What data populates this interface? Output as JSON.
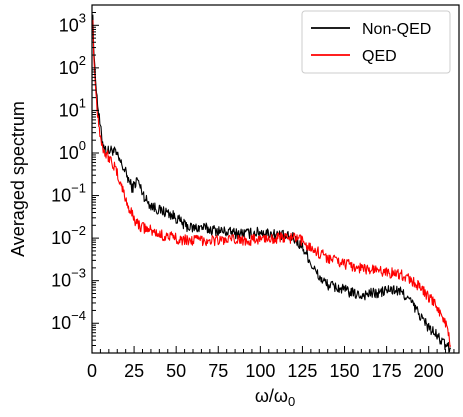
{
  "chart_data": {
    "type": "line",
    "xlabel": "ω/ω",
    "xlabel_sub": "0",
    "ylabel": "Averaged spectrum",
    "yscale": "log",
    "xlim": [
      0,
      218
    ],
    "ylim": [
      2e-05,
      3000
    ],
    "x_ticks": [
      0,
      25,
      50,
      75,
      100,
      125,
      150,
      175,
      200
    ],
    "y_ticks": [
      {
        "value": 1000,
        "base": "10",
        "exp": "3"
      },
      {
        "value": 100,
        "base": "10",
        "exp": "2"
      },
      {
        "value": 10,
        "base": "10",
        "exp": "1"
      },
      {
        "value": 1,
        "base": "10",
        "exp": "0"
      },
      {
        "value": 0.1,
        "base": "10",
        "exp": "−1"
      },
      {
        "value": 0.01,
        "base": "10",
        "exp": "−2"
      },
      {
        "value": 0.001,
        "base": "10",
        "exp": "−3"
      },
      {
        "value": 0.0001,
        "base": "10",
        "exp": "−4"
      }
    ],
    "grid": false,
    "legend_position": "top-right",
    "series": [
      {
        "name": "Non-QED",
        "color": "#000000",
        "x": [
          0.5,
          1,
          2,
          3,
          4,
          5,
          6,
          8,
          10,
          12,
          14,
          16,
          18,
          20,
          22,
          24,
          26,
          27,
          28,
          30,
          32,
          35,
          38,
          40,
          45,
          50,
          55,
          60,
          65,
          70,
          75,
          80,
          85,
          90,
          95,
          100,
          105,
          110,
          115,
          120,
          125,
          128,
          130,
          135,
          140,
          145,
          150,
          155,
          160,
          165,
          170,
          175,
          180,
          185,
          190,
          195,
          200,
          205,
          210,
          213
        ],
        "values": [
          2000,
          300,
          60,
          20,
          8,
          4,
          2,
          1.2,
          1.1,
          1.2,
          1,
          0.7,
          0.5,
          0.35,
          0.22,
          0.15,
          0.2,
          0.25,
          0.18,
          0.12,
          0.08,
          0.06,
          0.05,
          0.045,
          0.04,
          0.03,
          0.02,
          0.017,
          0.018,
          0.016,
          0.015,
          0.014,
          0.013,
          0.013,
          0.013,
          0.014,
          0.013,
          0.012,
          0.011,
          0.01,
          0.006,
          0.004,
          0.0025,
          0.0012,
          0.0008,
          0.0007,
          0.0006,
          0.0005,
          0.00045,
          0.0005,
          0.0005,
          0.0006,
          0.0006,
          0.0005,
          0.0003,
          0.00015,
          8e-05,
          5e-05,
          3e-05,
          2.5e-05
        ]
      },
      {
        "name": "QED",
        "color": "#ff0000",
        "x": [
          0.5,
          1,
          2,
          3,
          4,
          5,
          6,
          8,
          10,
          12,
          14,
          16,
          18,
          20,
          22,
          24,
          26,
          28,
          30,
          35,
          40,
          45,
          50,
          55,
          60,
          65,
          70,
          75,
          80,
          85,
          90,
          95,
          100,
          105,
          110,
          115,
          120,
          125,
          130,
          135,
          140,
          145,
          150,
          155,
          160,
          165,
          170,
          175,
          180,
          185,
          190,
          195,
          200,
          205,
          210,
          213
        ],
        "values": [
          1500,
          200,
          40,
          12,
          5,
          2.5,
          1.5,
          1,
          0.8,
          0.6,
          0.4,
          0.25,
          0.15,
          0.08,
          0.05,
          0.035,
          0.025,
          0.02,
          0.018,
          0.015,
          0.012,
          0.011,
          0.01,
          0.009,
          0.009,
          0.009,
          0.009,
          0.009,
          0.009,
          0.009,
          0.009,
          0.009,
          0.0095,
          0.01,
          0.01,
          0.01,
          0.01,
          0.0085,
          0.006,
          0.0045,
          0.0035,
          0.003,
          0.0025,
          0.0022,
          0.002,
          0.0018,
          0.0017,
          0.0016,
          0.0015,
          0.0013,
          0.001,
          0.0007,
          0.0004,
          0.00025,
          0.0001,
          3e-05
        ]
      }
    ]
  }
}
